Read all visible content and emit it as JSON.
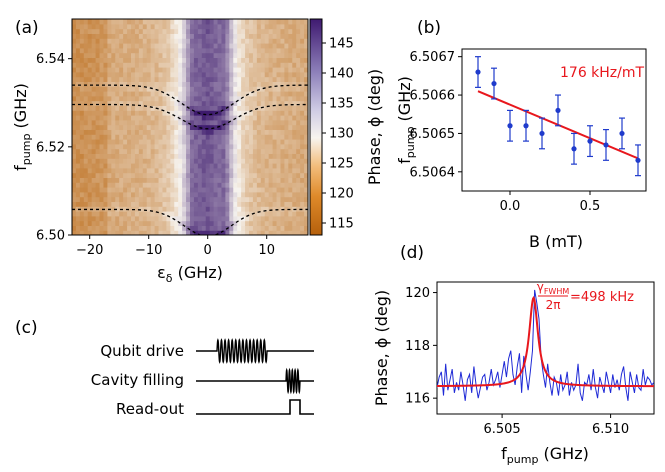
{
  "chart_data": [
    {
      "id": "a",
      "type": "heatmap",
      "panel_label": "(a)",
      "xlabel": "ε",
      "xlabel_sub": "δ",
      "xlabel_unit": " (GHz)",
      "ylabel": "f",
      "ylabel_sub": "pump",
      "ylabel_unit": " (GHz)",
      "xlim": [
        -23,
        17
      ],
      "ylim": [
        6.5,
        6.549
      ],
      "xticks": [
        -20,
        -10,
        0,
        10
      ],
      "xtick_labels": [
        "−20",
        "−10",
        "0",
        "10"
      ],
      "yticks": [
        6.5,
        6.52,
        6.54
      ],
      "ytick_labels": [
        "6.50",
        "6.52",
        "6.54"
      ],
      "colorbar": {
        "label": "Phase, ϕ (deg)",
        "min": 113,
        "max": 149,
        "ticks": [
          115,
          120,
          125,
          130,
          135,
          140,
          145
        ],
        "tick_labels": [
          "115",
          "120",
          "125",
          "130",
          "135",
          "140",
          "145"
        ],
        "colormap": "PuOr",
        "low_color": "#b8630c",
        "mid_color": "#f6f3ee",
        "high_color": "#3d1a6d"
      },
      "dashed_curves": [
        {
          "name": "",
          "offset_ghz": 0.034,
          "dip_ghz": 0.0067,
          "width": 4.5
        },
        {
          "name": "",
          "offset_ghz": 0.0296,
          "dip_ghz": 0.0055,
          "width": 4.5
        },
        {
          "name": "",
          "offset_ghz": 0.0058,
          "dip_ghz": 0.0061,
          "width": 4.0
        }
      ],
      "dashed_center_ghz": 6.5,
      "dashed_x_range": [
        -23,
        17
      ]
    },
    {
      "id": "b",
      "type": "scatter",
      "panel_label": "(b)",
      "xlabel": "B (mT)",
      "ylabel": "f",
      "ylabel_sub": "pump",
      "ylabel_unit": " (GHz)",
      "xlim": [
        -0.3,
        0.85
      ],
      "ylim": [
        6.50635,
        6.50672
      ],
      "xticks": [
        0.0,
        0.5
      ],
      "xtick_labels": [
        "0.0",
        "0.5"
      ],
      "yticks": [
        6.5064,
        6.5065,
        6.5066,
        6.5067
      ],
      "ytick_labels": [
        "6.5064",
        "6.5065",
        "6.5066",
        "6.5067"
      ],
      "annotation": "176 kHz/mT",
      "points_color": "#1f3bcc",
      "fit_color": "#e8171d",
      "x": [
        -0.2,
        -0.1,
        0.0,
        0.1,
        0.2,
        0.3,
        0.4,
        0.5,
        0.6,
        0.7,
        0.8
      ],
      "y": [
        6.50666,
        6.50663,
        6.50652,
        6.50652,
        6.5065,
        6.50656,
        6.50646,
        6.50648,
        6.50647,
        6.5065,
        6.50643
      ],
      "yerr": [
        4e-05,
        4e-05,
        4e-05,
        4e-05,
        4e-05,
        4e-05,
        4e-05,
        4e-05,
        4e-05,
        4e-05,
        4e-05
      ],
      "fit": {
        "x": [
          -0.2,
          0.8
        ],
        "y": [
          6.50661,
          6.506435
        ]
      }
    },
    {
      "id": "d",
      "type": "line",
      "panel_label": "(d)",
      "xlabel": "f",
      "xlabel_sub": "pump",
      "xlabel_unit": " (GHz)",
      "ylabel": "Phase, ϕ (deg)",
      "xlim": [
        6.502,
        6.512
      ],
      "ylim": [
        115.4,
        120.4
      ],
      "xticks": [
        6.505,
        6.51
      ],
      "xtick_labels": [
        "6.505",
        "6.510"
      ],
      "yticks": [
        116,
        118,
        120
      ],
      "ytick_labels": [
        "116",
        "118",
        "120"
      ],
      "annotation_num": "γ",
      "annotation_num_sub": "FWHM",
      "annotation_den": "2π",
      "annotation_value": "=498 kHz",
      "data_color": "#1f2ad6",
      "fit_color": "#e8171d",
      "lorentzian": {
        "center": 6.50645,
        "fwhm": 0.000498,
        "baseline": 116.45,
        "amplitude": 3.35
      },
      "series": [
        {
          "name": "",
          "x_start": 6.502,
          "x_step": 0.0001,
          "values": [
            116.4,
            116.8,
            117.0,
            116.1,
            117.3,
            116.3,
            116.7,
            117.1,
            116.2,
            116.6,
            116.3,
            117.0,
            116.5,
            115.9,
            116.7,
            116.9,
            116.2,
            117.2,
            116.5,
            116.0,
            116.4,
            116.8,
            116.9,
            116.3,
            116.6,
            117.1,
            116.5,
            116.7,
            117.0,
            116.4,
            116.9,
            117.4,
            116.8,
            117.5,
            117.8,
            116.9,
            116.5,
            117.2,
            117.7,
            116.2,
            117.6,
            116.9,
            116.3,
            117.0,
            117.8,
            120.1,
            119.6,
            119.0,
            117.5,
            116.9,
            116.4,
            117.3,
            116.6,
            116.1,
            116.8,
            116.6,
            116.1,
            116.9,
            116.3,
            116.5,
            117.0,
            116.1,
            116.6,
            116.3,
            116.5,
            117.3,
            116.2,
            115.9,
            116.6,
            116.5,
            116.9,
            116.3,
            117.1,
            116.4,
            116.0,
            116.8,
            116.5,
            116.2,
            117.0,
            116.6,
            116.2,
            116.9,
            116.4,
            116.7,
            116.3,
            116.9,
            117.2,
            116.4,
            115.9,
            117.0,
            116.6,
            116.2,
            116.9,
            116.4,
            116.3,
            117.1,
            116.5,
            116.8,
            116.7,
            116.5,
            116.6
          ]
        }
      ]
    }
  ],
  "sequence": {
    "panel_label": "(c)",
    "rows": [
      {
        "label": "Qubit drive",
        "pulse": "drive-burst"
      },
      {
        "label": "Cavity filling",
        "pulse": "filling-burst"
      },
      {
        "label": "Read-out",
        "pulse": "square"
      }
    ]
  }
}
